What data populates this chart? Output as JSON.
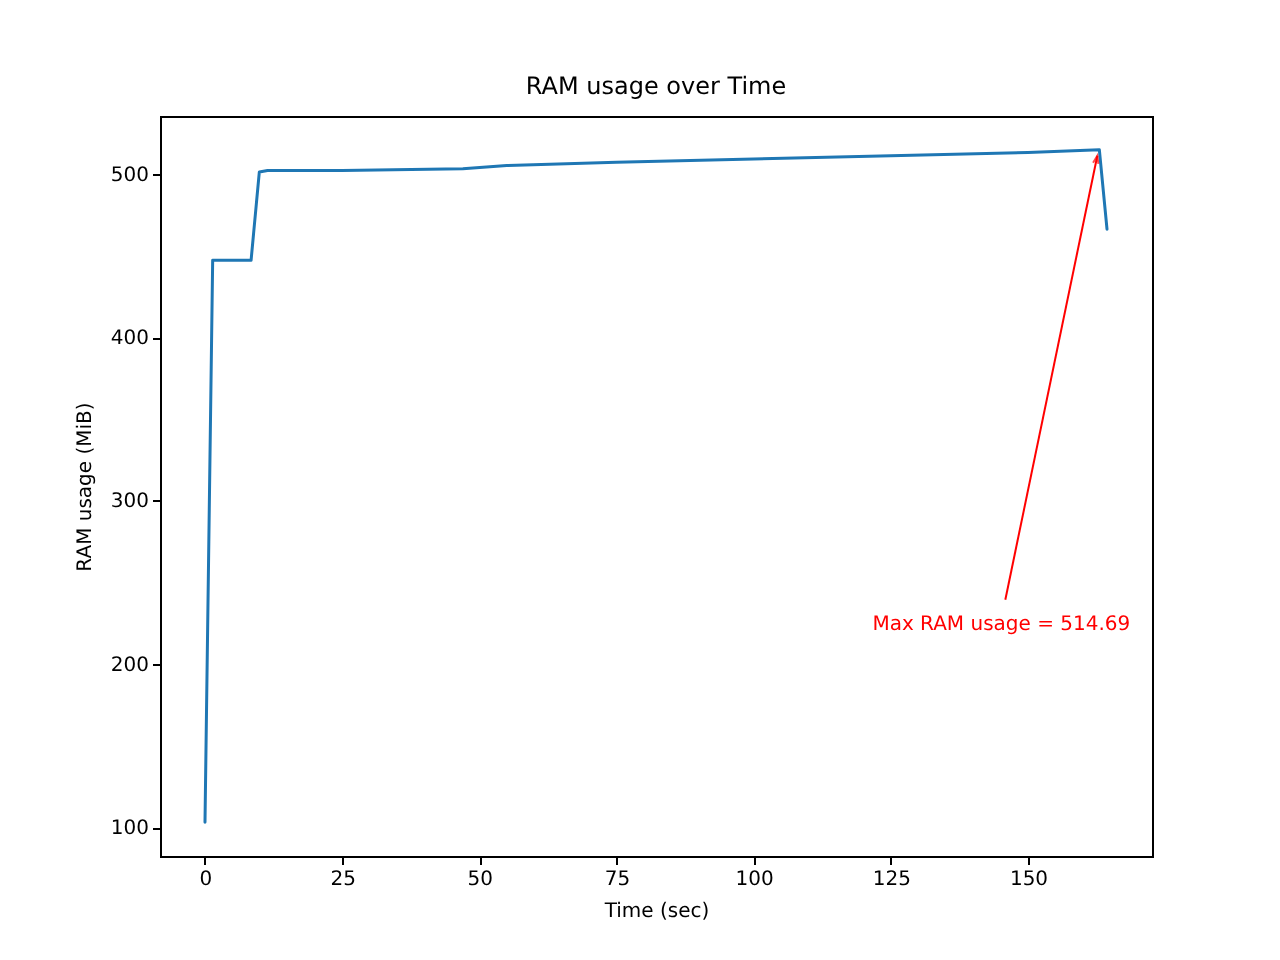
{
  "chart_data": {
    "type": "line",
    "title": "RAM usage over Time",
    "xlabel": "Time (sec)",
    "ylabel": "RAM usage (MiB)",
    "x": [
      0,
      1.4,
      8.4,
      9.9,
      11.4,
      25,
      47,
      55,
      75,
      100,
      125,
      150,
      163,
      164.4
    ],
    "series": [
      {
        "color": "#1f77b4",
        "values": [
          103,
          447,
          447,
          501,
          502,
          502,
          503,
          505,
          507,
          509,
          511,
          513,
          514.69,
          466
        ]
      }
    ],
    "xlim": [
      -8.2,
      172.6
    ],
    "ylim": [
      82.4,
      535.3
    ],
    "xticks": [
      0,
      25,
      50,
      75,
      100,
      125,
      150
    ],
    "yticks": [
      100,
      200,
      300,
      400,
      500
    ],
    "grid": false,
    "legend": false,
    "marker": "none",
    "line_style": "solid",
    "annotations": [
      {
        "text": "Max RAM usage = 514.69",
        "x": 163,
        "y": 514.69
      }
    ]
  }
}
